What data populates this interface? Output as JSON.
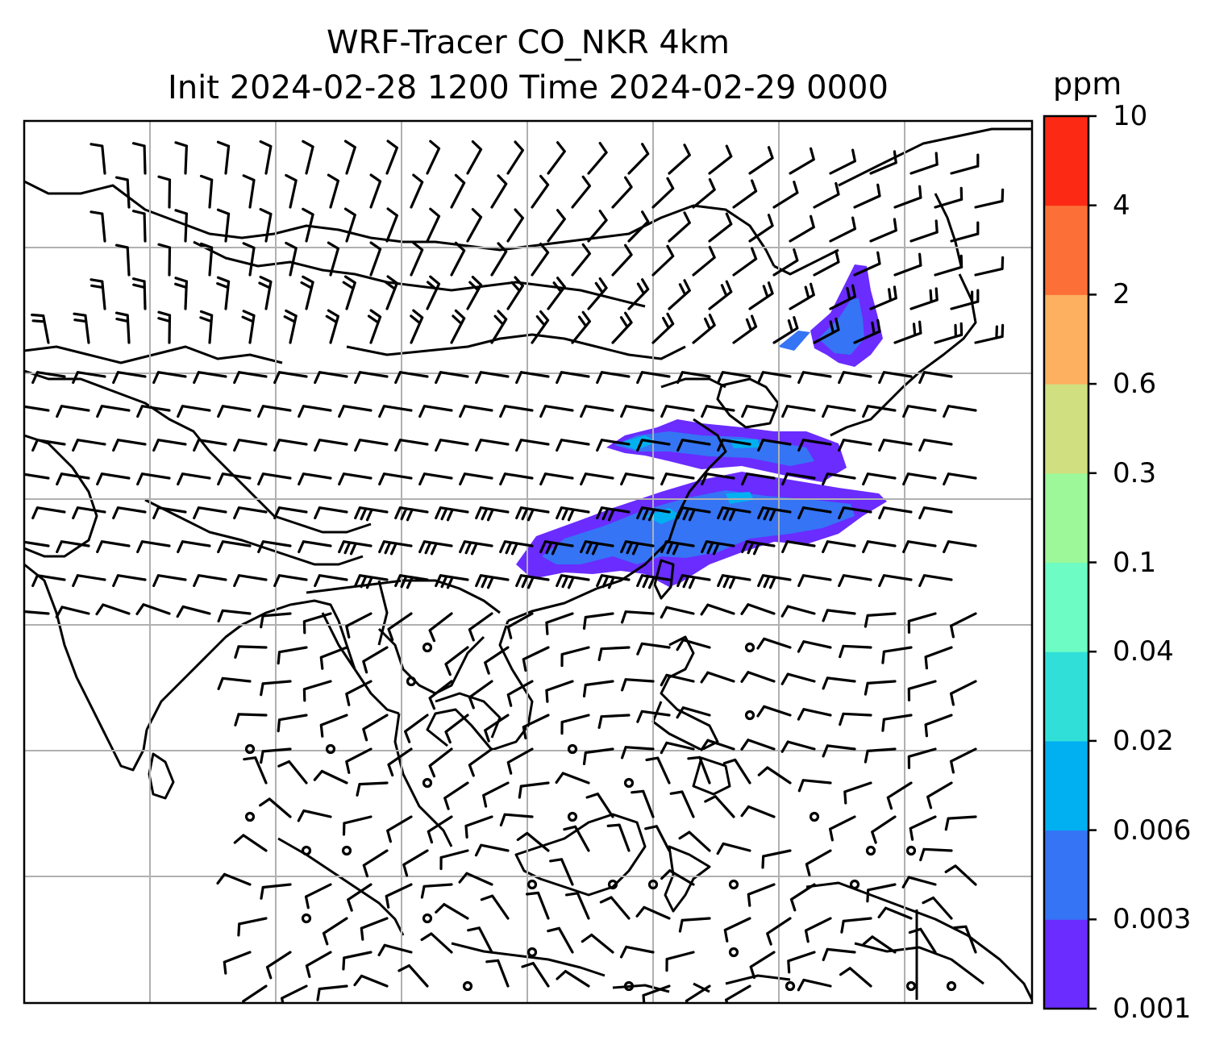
{
  "title": {
    "line1": "WRF-Tracer CO_NKR 4km",
    "line2": "Init 2024-02-28 1200 Time 2024-02-29 0000"
  },
  "colorbar": {
    "unit": "ppm",
    "levels": [
      "0.001",
      "0.003",
      "0.006",
      "0.02",
      "0.04",
      "0.1",
      "0.3",
      "0.6",
      "2",
      "4",
      "10"
    ],
    "colors": [
      "#6a2cff",
      "#3574f5",
      "#00b0f0",
      "#30e0d8",
      "#6cfcc4",
      "#9cf898",
      "#d0e080",
      "#fcb060",
      "#fc7038",
      "#fc2a14"
    ]
  },
  "map": {
    "variable": "CO tracer concentration",
    "overlay": "wind barbs",
    "coastline_color": "#000000",
    "gridline_color": "#b0b0b0"
  }
}
